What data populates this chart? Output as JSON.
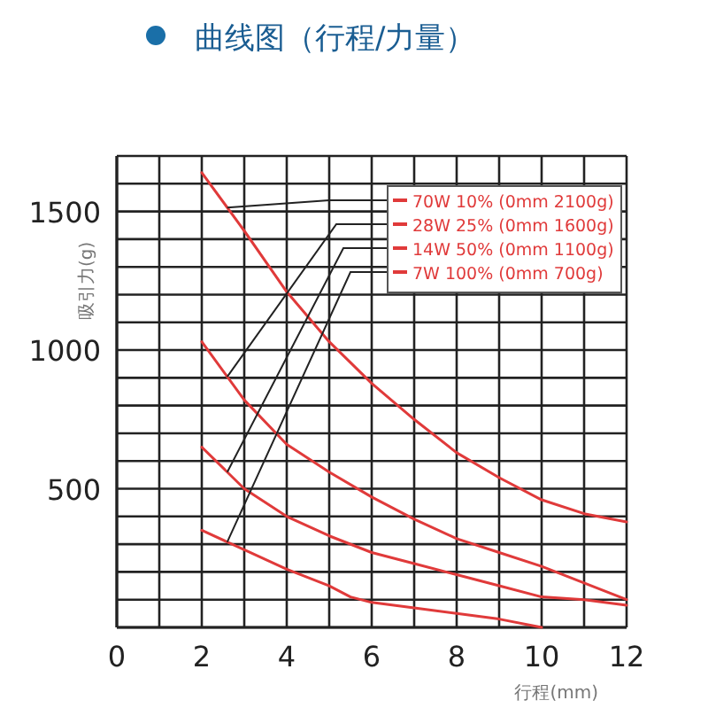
{
  "chart_data": {
    "type": "line",
    "title": "曲线图（行程/力量）",
    "xlabel": "行程(mm)",
    "ylabel": "吸引力(g)",
    "xlim": [
      0,
      12
    ],
    "ylim": [
      0,
      1700
    ],
    "xticks": [
      0,
      {
        "value": 1,
        "label": null
      },
      2,
      {
        "value": 3,
        "label": null
      },
      4,
      {
        "value": 5,
        "label": null
      },
      6,
      {
        "value": 7,
        "label": null
      },
      8,
      {
        "value": 9,
        "label": null
      },
      10,
      {
        "value": 11,
        "label": null
      },
      12
    ],
    "yticks": [
      {
        "value": 0,
        "label": null
      },
      {
        "value": 100,
        "label": null
      },
      {
        "value": 200,
        "label": null
      },
      {
        "value": 300,
        "label": null
      },
      {
        "value": 400,
        "label": null
      },
      500,
      {
        "value": 600,
        "label": null
      },
      {
        "value": 700,
        "label": null
      },
      {
        "value": 800,
        "label": null
      },
      {
        "value": 900,
        "label": null
      },
      1000,
      {
        "value": 1100,
        "label": null
      },
      {
        "value": 1200,
        "label": null
      },
      {
        "value": 1300,
        "label": null
      },
      {
        "value": 1400,
        "label": null
      },
      1500,
      {
        "value": 1600,
        "label": null
      },
      {
        "value": 1700,
        "label": null
      }
    ],
    "grid": true,
    "legend": "top right",
    "marker": "none",
    "line_style": "solid",
    "series": [
      {
        "name": "70W 10% (0mm 2100g)",
        "color": "#e03a3a",
        "x": [
          2,
          3,
          4,
          5,
          6,
          7,
          8,
          9,
          10,
          11,
          12
        ],
        "values": [
          1640,
          1430,
          1210,
          1030,
          880,
          750,
          630,
          540,
          460,
          410,
          380
        ]
      },
      {
        "name": "28W 25% (0mm 1600g)",
        "color": "#e03a3a",
        "x": [
          2,
          3,
          4,
          5,
          6,
          7,
          8,
          9,
          10,
          11,
          12
        ],
        "values": [
          1030,
          820,
          660,
          560,
          470,
          390,
          320,
          270,
          220,
          160,
          100
        ]
      },
      {
        "name": "14W 50% (0mm 1100g)",
        "color": "#e03a3a",
        "x": [
          2,
          3,
          4,
          5,
          6,
          7,
          8,
          9,
          10,
          11,
          12
        ],
        "values": [
          650,
          500,
          400,
          330,
          270,
          230,
          190,
          150,
          110,
          100,
          80
        ]
      },
      {
        "name": "7W 100% (0mm 700g)",
        "color": "#e03a3a",
        "x": [
          2,
          3,
          4,
          5,
          5.5,
          6,
          7,
          8,
          9,
          10
        ],
        "values": [
          350,
          280,
          210,
          150,
          110,
          90,
          70,
          50,
          30,
          0
        ]
      }
    ]
  }
}
